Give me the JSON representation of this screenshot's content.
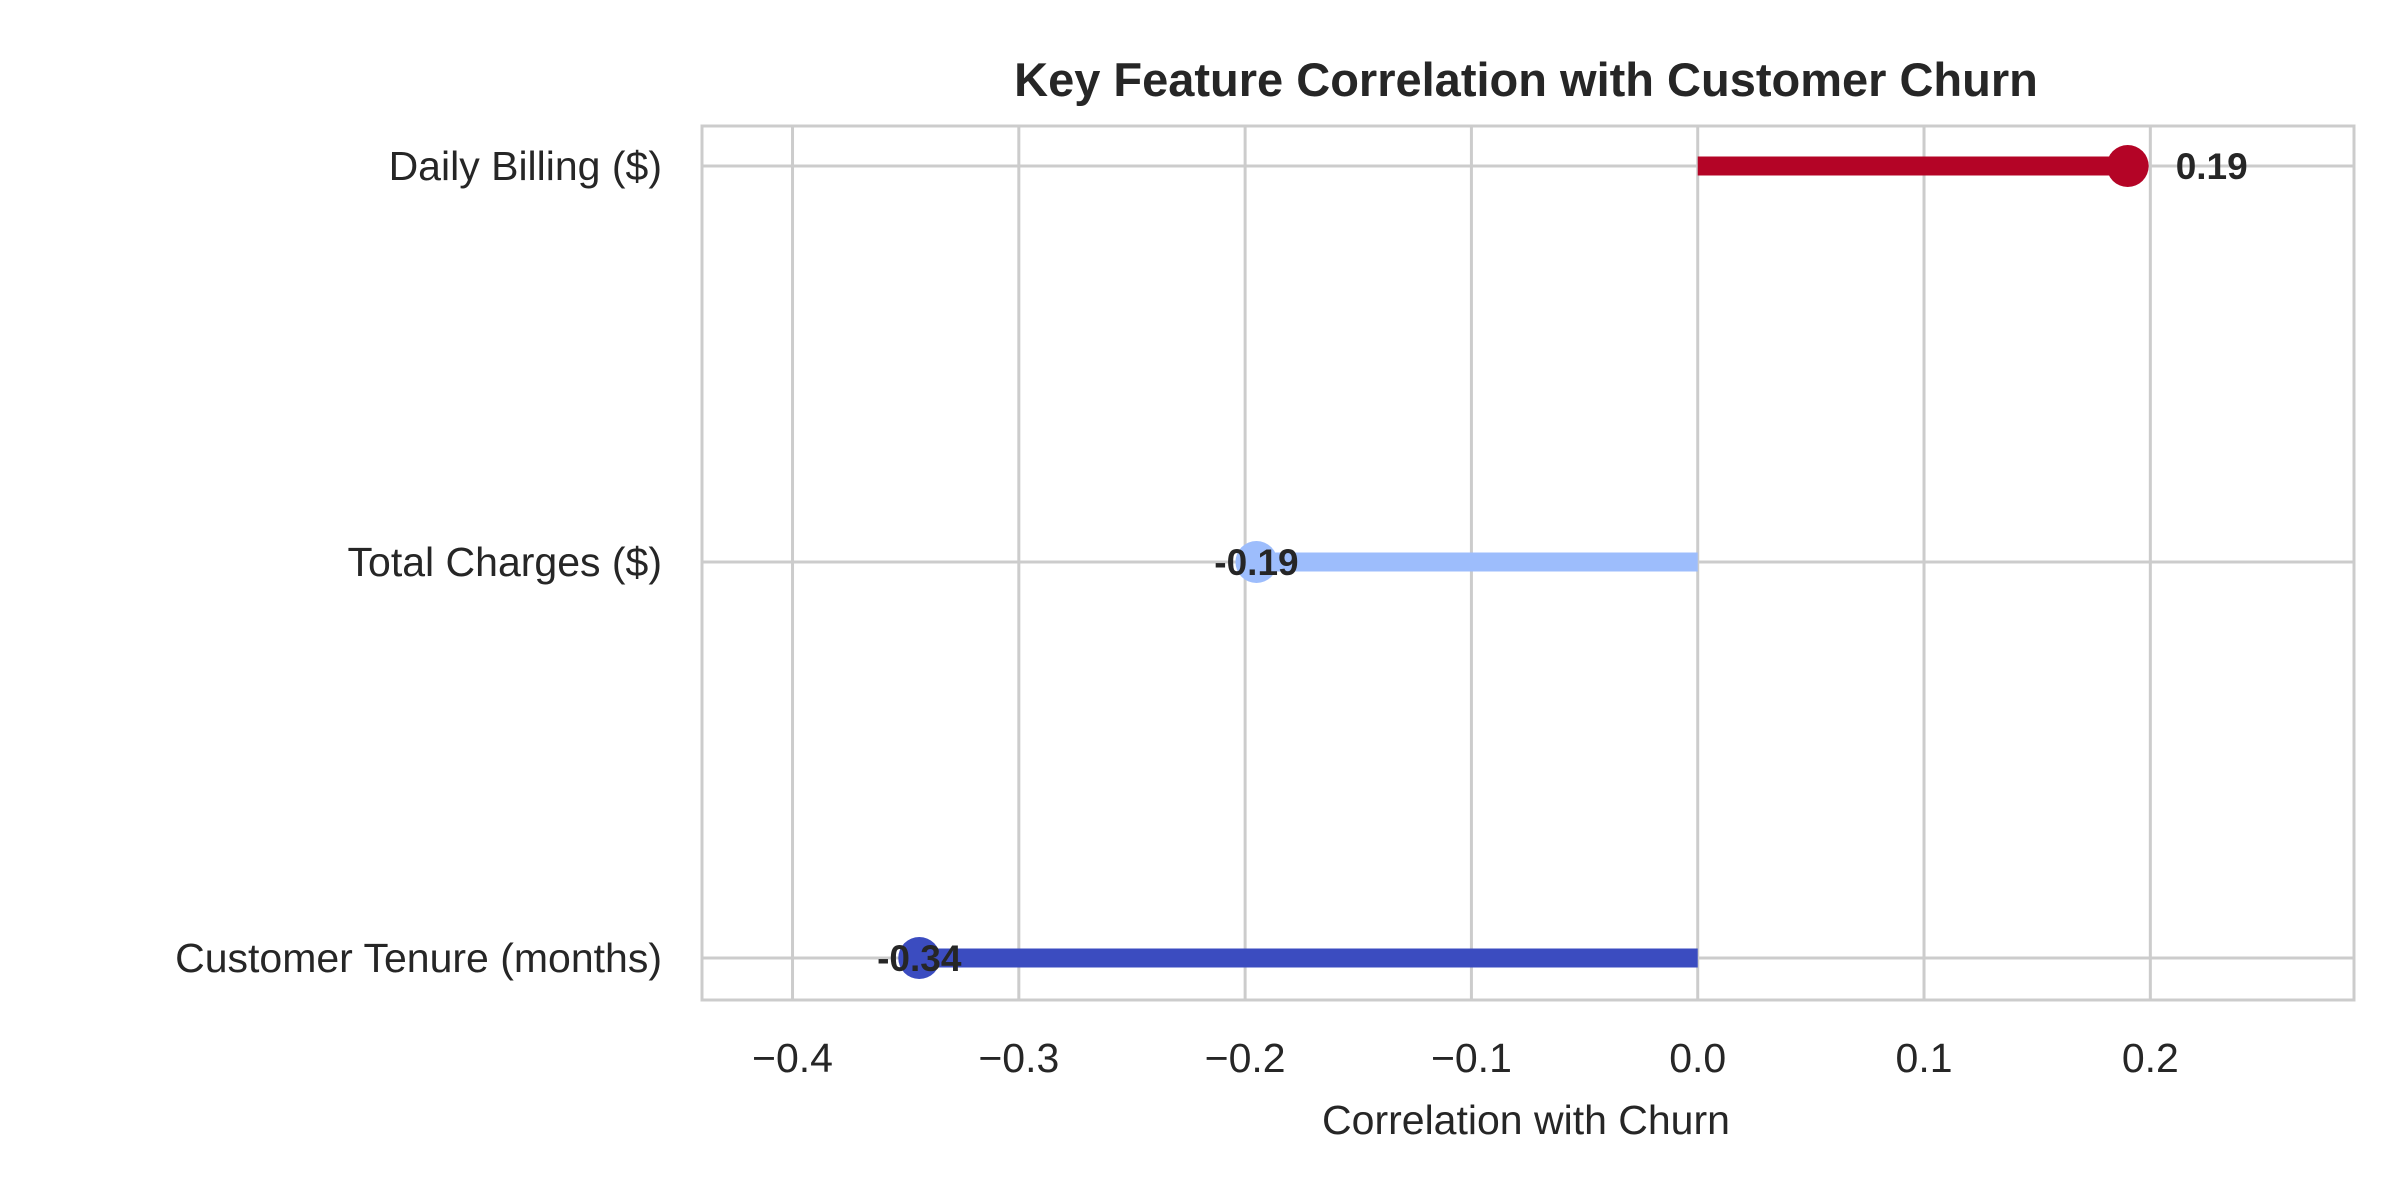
{
  "chart_data": {
    "type": "lollipop",
    "title": "Key Feature Correlation with Customer Churn",
    "xlabel": "Correlation with Churn",
    "ylabel": "",
    "xlim": [
      -0.44,
      0.29
    ],
    "xticks": [
      -0.4,
      -0.3,
      -0.2,
      -0.1,
      0.0,
      0.1,
      0.2
    ],
    "xtick_labels": [
      "−0.4",
      "−0.3",
      "−0.2",
      "−0.1",
      "0.0",
      "0.1",
      "0.2"
    ],
    "grid": true,
    "categories": [
      "Daily Billing ($)",
      "Total Charges ($)",
      "Customer Tenure (months)"
    ],
    "values": [
      0.19,
      -0.195,
      -0.344
    ],
    "value_labels": [
      "0.19",
      "-0.19",
      "-0.34"
    ],
    "colors": [
      "#b40426",
      "#9dbdfc",
      "#3b4cc0"
    ]
  }
}
